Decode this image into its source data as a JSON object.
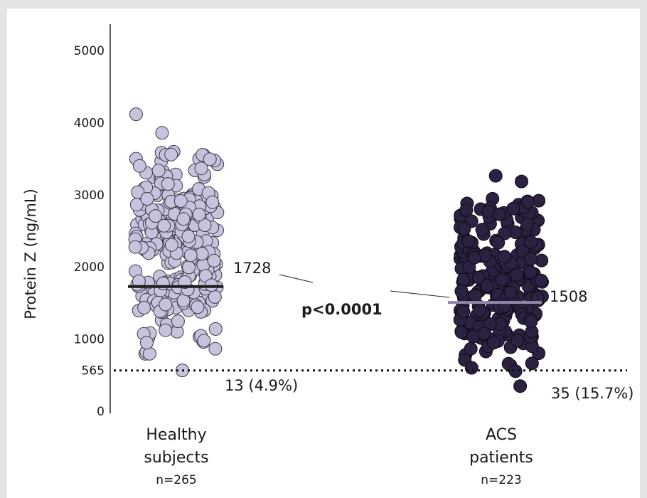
{
  "chart_data": {
    "type": "scatter",
    "title": "",
    "xlabel": "",
    "ylabel": "Protein Z (ng/mL)",
    "ylim": [
      0,
      5000
    ],
    "y_ticks": [
      "5000",
      "4000",
      "3000",
      "2000",
      "1000",
      "565",
      "0"
    ],
    "y_tick_values": [
      5000,
      4000,
      3000,
      2000,
      1000,
      565,
      0
    ],
    "threshold": {
      "value": 565,
      "style": "dotted",
      "color": "#111111"
    },
    "p_value": "p<0.0001",
    "groups": [
      {
        "key": "healthy",
        "line1": "Healthy",
        "line2": "subjects",
        "n": "n=265",
        "median": 1728,
        "median_label": "1728",
        "median_color": "#1f1f1f",
        "below_threshold": "13 (4.9%)",
        "range": [
          330,
          4300
        ],
        "dot_fill": "#c6c3dc",
        "dot_stroke": "#3a3a4a",
        "count": 265
      },
      {
        "key": "acs",
        "line1": "ACS",
        "line2": "patients",
        "n": "n=223",
        "median": 1508,
        "median_label": "1508",
        "median_color": "#8f88ab",
        "below_threshold": "35 (15.7%)",
        "range": [
          110,
          3500
        ],
        "dot_fill": "#2c2140",
        "dot_stroke": "#0d0a15",
        "count": 223
      }
    ]
  }
}
